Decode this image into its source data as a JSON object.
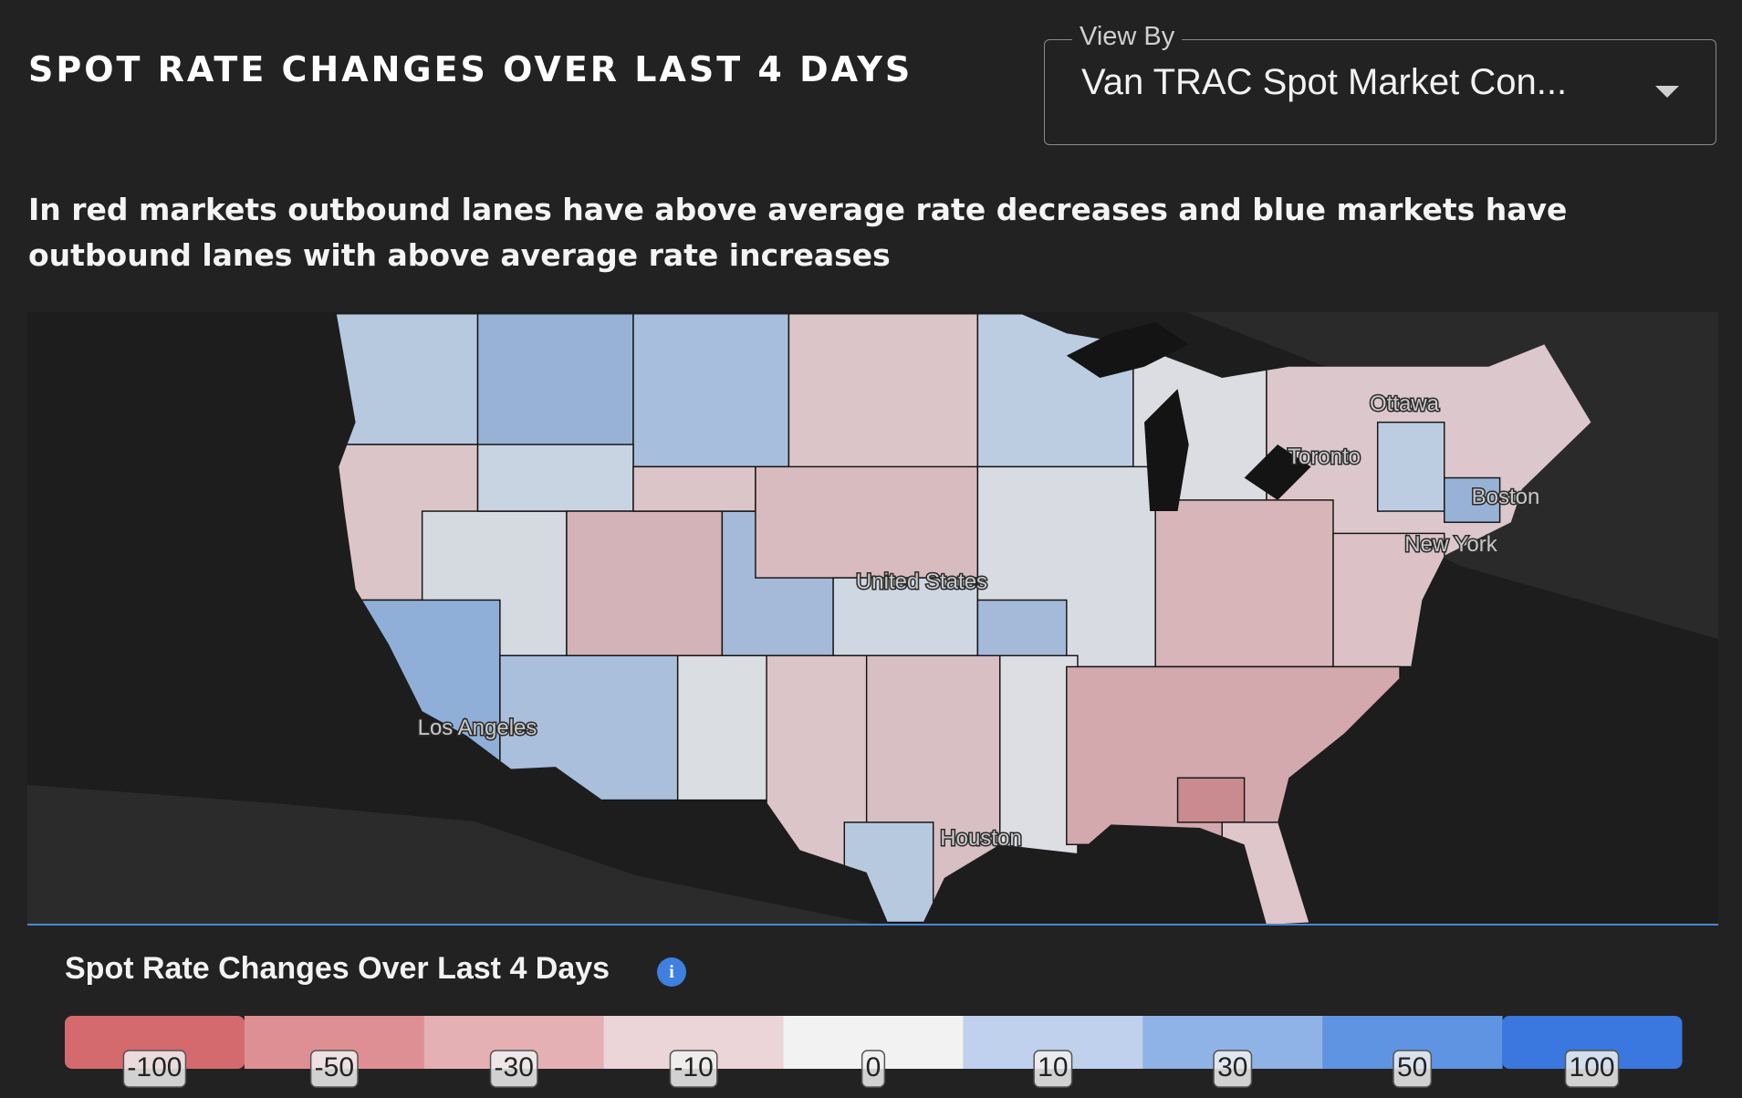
{
  "header": {
    "title": "SPOT RATE CHANGES OVER LAST 4 DAYS"
  },
  "view_by": {
    "label": "View By",
    "value": "Van TRAC Spot Market Con..."
  },
  "description": "In red markets outbound lanes have above average rate decreases and blue markets have outbound lanes with above average rate increases",
  "map": {
    "labels": [
      "Ottawa",
      "Toronto",
      "Boston",
      "New York",
      "United States",
      "Los Angeles",
      "Houston"
    ]
  },
  "legend": {
    "title": "Spot Rate Changes Over Last 4 Days",
    "stops": [
      {
        "value": -100,
        "color": "#d4696e"
      },
      {
        "value": -50,
        "color": "#de8f93"
      },
      {
        "value": -30,
        "color": "#e4b0b3"
      },
      {
        "value": -10,
        "color": "#ebd5d8"
      },
      {
        "value": 0,
        "color": "#f2f2f2"
      },
      {
        "value": 10,
        "color": "#bfd1ec"
      },
      {
        "value": 30,
        "color": "#8fb3e6"
      },
      {
        "value": 50,
        "color": "#5f94e3"
      },
      {
        "value": 100,
        "color": "#3a77de"
      }
    ]
  }
}
